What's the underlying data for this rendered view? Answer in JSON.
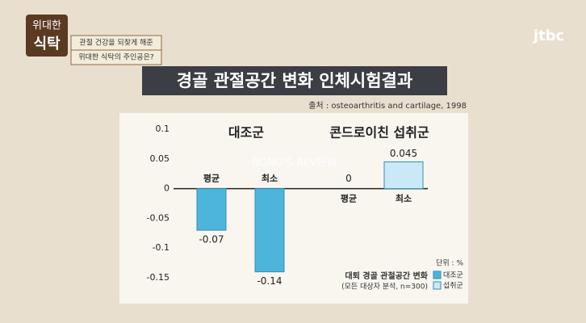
{
  "chart_data": {
    "type": "bar",
    "title": "경골 관절공간 변화 인체시험결과",
    "source": "출처 : osteoarthritis and cartilage, 1998",
    "groups": [
      "대조군",
      "콘드로이친 섭취군"
    ],
    "categories": [
      "평균",
      "최소"
    ],
    "series": [
      {
        "name": "대조군",
        "color": "#4db5dc",
        "values": [
          -0.07,
          -0.14
        ]
      },
      {
        "name": "섭취군",
        "color": "#c9e9f6",
        "values": [
          0,
          0.045
        ]
      }
    ],
    "ylim": [
      -0.15,
      0.1
    ],
    "yticks": [
      0.1,
      0.05,
      0,
      -0.05,
      -0.1,
      -0.15
    ],
    "unit_note": "단위 : %",
    "legend_title": "대퇴 경골 관절공간 변화",
    "legend_subtitle": "(모든 대상자 분석, n=300)"
  },
  "overlay": {
    "show_title_top": "위대한",
    "show_title_bottom": "식탁",
    "captions": [
      "관절 건강을 되찾게 해준",
      "위대한 식탁의 주인공은?"
    ],
    "channel": "jtbc",
    "watermark": "BONG'S REVIEW"
  }
}
